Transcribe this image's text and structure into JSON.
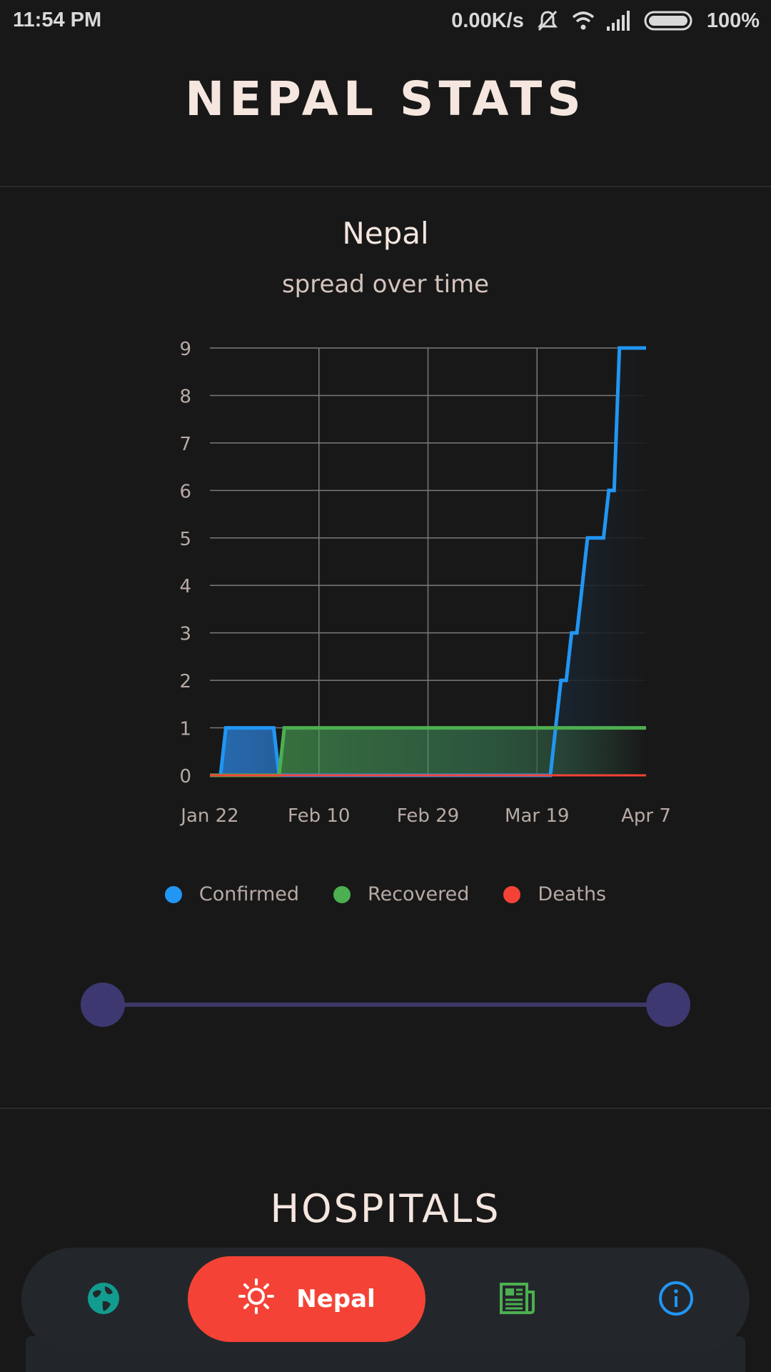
{
  "status_bar": {
    "time": "11:54 PM",
    "network_speed": "0.00K/s",
    "battery": "100%"
  },
  "header": {
    "title": "NEPAL STATS"
  },
  "chart_section": {
    "title": "Nepal",
    "subtitle": "spread over time"
  },
  "chart_data": {
    "type": "area",
    "title": "Nepal",
    "subtitle": "spread over time",
    "x_labels": [
      "Jan 22",
      "Feb 10",
      "Feb 29",
      "Mar 19",
      "Apr 7"
    ],
    "ylim": [
      0,
      9
    ],
    "yticks": [
      0,
      1,
      2,
      3,
      4,
      5,
      6,
      7,
      8,
      9
    ],
    "grid": true,
    "legend_position": "bottom",
    "series": [
      {
        "name": "Confirmed",
        "color": "#2196f3",
        "step": true,
        "points": [
          [
            0,
            0
          ],
          [
            2,
            0
          ],
          [
            3,
            1
          ],
          [
            12,
            1
          ],
          [
            13,
            0
          ],
          [
            64,
            0
          ],
          [
            65,
            1
          ],
          [
            66,
            2
          ],
          [
            67,
            2
          ],
          [
            68,
            3
          ],
          [
            69,
            3
          ],
          [
            70,
            4
          ],
          [
            71,
            5
          ],
          [
            74,
            5
          ],
          [
            75,
            6
          ],
          [
            76,
            6
          ],
          [
            77,
            9
          ],
          [
            82,
            9
          ]
        ]
      },
      {
        "name": "Recovered",
        "color": "#4caf50",
        "step": true,
        "points": [
          [
            0,
            0
          ],
          [
            13,
            0
          ],
          [
            14,
            1
          ],
          [
            82,
            1
          ]
        ]
      },
      {
        "name": "Deaths",
        "color": "#f44336",
        "step": true,
        "points": [
          [
            0,
            0
          ],
          [
            82,
            0
          ]
        ]
      }
    ]
  },
  "legend": [
    {
      "label": "Confirmed",
      "color": "#2196f3"
    },
    {
      "label": "Recovered",
      "color": "#4caf50"
    },
    {
      "label": "Deaths",
      "color": "#f44336"
    }
  ],
  "date_range_slider": {
    "start": 0.0,
    "end": 1.0
  },
  "hospitals": {
    "heading": "HOSPITALS"
  },
  "bottom_nav": {
    "items": [
      {
        "icon": "globe-icon",
        "color": "#129c8f"
      },
      {
        "icon": "sun-icon",
        "label": "Nepal",
        "active": true,
        "color": "#f44336"
      },
      {
        "icon": "newspaper-icon",
        "color": "#4caf50"
      },
      {
        "icon": "info-icon",
        "color": "#2196f3"
      }
    ]
  }
}
